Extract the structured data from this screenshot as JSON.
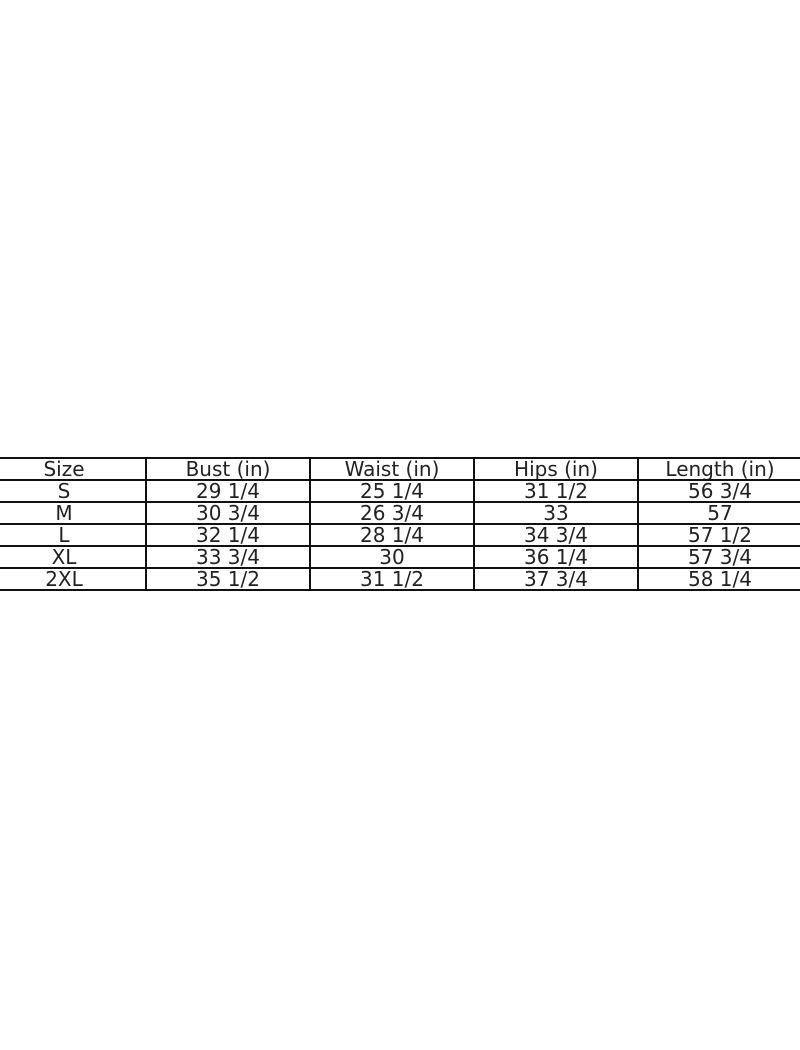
{
  "size_chart": {
    "headers": [
      "Size",
      "Bust (in)",
      "Waist (in)",
      "Hips (in)",
      "Length (in)"
    ],
    "rows": [
      [
        "S",
        "29 1/4",
        "25 1/4",
        "31 1/2",
        "56 3/4"
      ],
      [
        "M",
        "30 3/4",
        "26 3/4",
        "33",
        "57"
      ],
      [
        "L",
        "32 1/4",
        "28 1/4",
        "34 3/4",
        "57 1/2"
      ],
      [
        "XL",
        "33 3/4",
        "30",
        "36 1/4",
        "57 3/4"
      ],
      [
        "2XL",
        "35 1/2",
        "31 1/2",
        "37 3/4",
        "58 1/4"
      ]
    ]
  }
}
